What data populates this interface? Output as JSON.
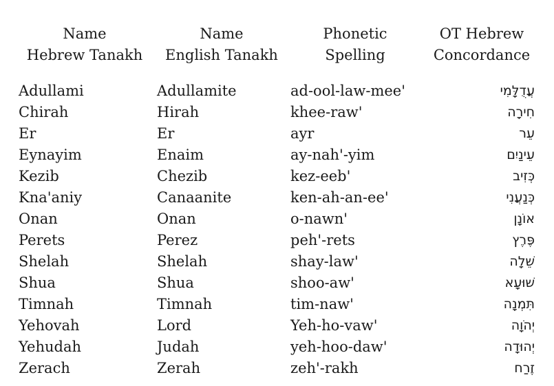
{
  "headers": [
    {
      "line1": "Name",
      "line2": "Hebrew Tanakh"
    },
    {
      "line1": "Name",
      "line2": "English Tanakh"
    },
    {
      "line1": "Phonetic",
      "line2": "Spelling"
    },
    {
      "line1": "OT Hebrew",
      "line2": "Concordance"
    }
  ],
  "rows": [
    [
      "Adullami",
      "Adullamite",
      "ad-ool-law-mee'",
      "עֲדֻלָּמִי"
    ],
    [
      "Chirah",
      "Hirah",
      "khee-raw'",
      "חִירָה"
    ],
    [
      "Er",
      "Er",
      "ayr",
      "עֵר"
    ],
    [
      "Eynayim",
      "Enaim",
      "ay-nah'-yim",
      "עֵינַיִם"
    ],
    [
      "Kezib",
      "Chezib",
      "kez-eeb'",
      "כְּזִיב"
    ],
    [
      "Kna'aniy",
      "Canaanite",
      "ken-ah-an-ee'",
      "כְּנַעֲנִי"
    ],
    [
      "Onan",
      "Onan",
      "o-nawn'",
      "אוֹנָן"
    ],
    [
      "Perets",
      "Perez",
      "peh'-rets",
      "פֶּרֶץ"
    ],
    [
      "Shelah",
      "Shelah",
      "shay-law'",
      "שֵׁלָה"
    ],
    [
      "Shua",
      "Shua",
      "shoo-aw'",
      "שׁוּעָא"
    ],
    [
      "Timnah",
      "Timnah",
      "tim-naw'",
      "תִּמְנָה"
    ],
    [
      "Yehovah",
      "Lord",
      "Yeh-ho-vaw'",
      "יְהֹוָה"
    ],
    [
      "Yehudah",
      "Judah",
      "yeh-hoo-daw'",
      "יְהוּדָה"
    ],
    [
      "Zerach",
      "Zerah",
      "zeh'-rakh",
      "זֶרַח"
    ]
  ]
}
